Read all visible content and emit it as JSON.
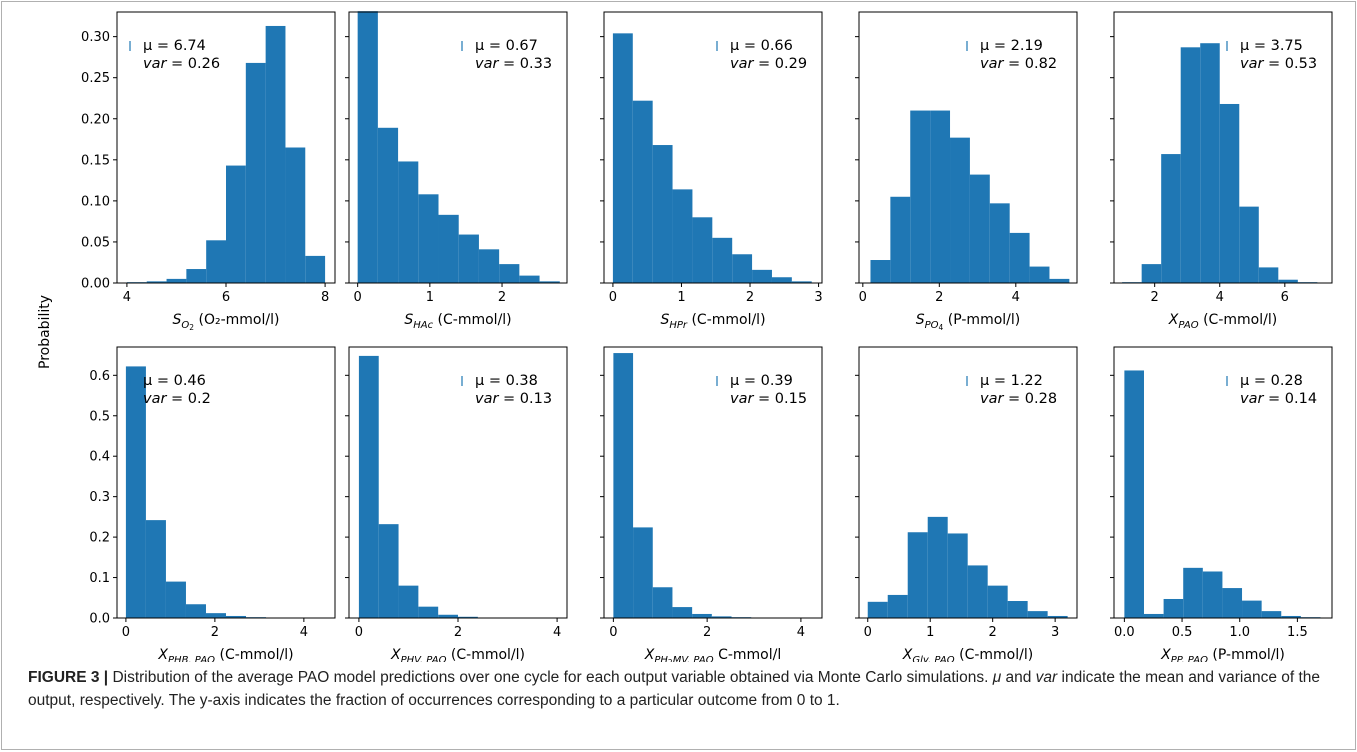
{
  "figure": {
    "ylabel": "Probability",
    "caption_label": "FIGURE 3 |",
    "caption_text": " Distribution of the average PAO model predictions over one cycle for each output variable obtained via Monte Carlo simulations. μ and var indicate the mean and variance of the output, respectively. The y-axis indicates the fraction of occurrences corresponding to a particular outcome from 0 to 1.",
    "bar_color": "#1f77b4"
  },
  "chart_data": [
    {
      "type": "bar",
      "sym": "S",
      "sub": "O",
      "sub2": "2",
      "unit": " (O₂-mmol/l)",
      "mu": "μ = 6.74",
      "var_value": "= 0.26",
      "ylim": [
        0,
        0.33
      ],
      "yticks": [
        "0.00",
        "0.05",
        "0.10",
        "0.15",
        "0.20",
        "0.25",
        "0.30"
      ],
      "xticks": [
        "4",
        "6",
        "8"
      ],
      "xtick_values": [
        4,
        6,
        8
      ],
      "xlim": [
        3.8,
        8.2
      ],
      "bin_edges": [
        4,
        4.4,
        4.8,
        5.2,
        5.6,
        6.0,
        6.4,
        6.8,
        7.2,
        7.6,
        8.0
      ],
      "values": [
        0.001,
        0.002,
        0.005,
        0.017,
        0.052,
        0.143,
        0.268,
        0.313,
        0.165,
        0.033
      ]
    },
    {
      "type": "bar",
      "sym": "S",
      "sub": "HAc",
      "sub2": "",
      "unit": " (C-mmol/l)",
      "mu": "μ = 0.67",
      "var_value": "= 0.33",
      "ylim": [
        0,
        0.33
      ],
      "yticks": [],
      "xticks": [
        "0",
        "1",
        "2"
      ],
      "xtick_values": [
        0,
        1,
        2
      ],
      "xlim": [
        -0.12,
        2.9
      ],
      "bin_edges": [
        0,
        0.28,
        0.56,
        0.84,
        1.12,
        1.4,
        1.68,
        1.96,
        2.24,
        2.52,
        2.8
      ],
      "values": [
        0.331,
        0.189,
        0.148,
        0.108,
        0.083,
        0.059,
        0.041,
        0.023,
        0.009,
        0.002
      ]
    },
    {
      "type": "bar",
      "sym": "S",
      "sub": "HPr",
      "sub2": "",
      "unit": " (C-mmol/l)",
      "mu": "μ = 0.66",
      "var_value": "= 0.29",
      "ylim": [
        0,
        0.33
      ],
      "yticks": [],
      "xticks": [
        "0",
        "1",
        "2",
        "3"
      ],
      "xtick_values": [
        0,
        1,
        2,
        3
      ],
      "xlim": [
        -0.13,
        3.05
      ],
      "bin_edges": [
        0,
        0.29,
        0.58,
        0.87,
        1.16,
        1.45,
        1.74,
        2.03,
        2.32,
        2.61,
        2.9
      ],
      "values": [
        0.304,
        0.222,
        0.168,
        0.114,
        0.08,
        0.055,
        0.035,
        0.016,
        0.007,
        0.002
      ]
    },
    {
      "type": "bar",
      "sym": "S",
      "sub": "PO",
      "sub2": "4",
      "unit": " (P-mmol/l)",
      "mu": "μ = 2.19",
      "var_value": "= 0.82",
      "ylim": [
        0,
        0.33
      ],
      "yticks": [],
      "xticks": [
        "0",
        "2",
        "4"
      ],
      "xtick_values": [
        0,
        2,
        4
      ],
      "xlim": [
        -0.1,
        5.6
      ],
      "bin_edges": [
        0.2,
        0.72,
        1.24,
        1.76,
        2.28,
        2.8,
        3.32,
        3.84,
        4.36,
        4.88,
        5.4
      ],
      "values": [
        0.028,
        0.105,
        0.21,
        0.21,
        0.177,
        0.132,
        0.097,
        0.061,
        0.02,
        0.005
      ]
    },
    {
      "type": "bar",
      "sym": "X",
      "sub": "PAO",
      "sub2": "",
      "unit": " (C-mmol/l)",
      "mu": "μ = 3.75",
      "var_value": "= 0.53",
      "ylim": [
        0,
        0.33
      ],
      "yticks": [],
      "xticks": [
        "2",
        "4",
        "6"
      ],
      "xtick_values": [
        2,
        4,
        6
      ],
      "xlim": [
        0.75,
        7.45
      ],
      "bin_edges": [
        1.0,
        1.6,
        2.2,
        2.8,
        3.4,
        4.0,
        4.6,
        5.2,
        5.8,
        6.4,
        7.0
      ],
      "values": [
        0.001,
        0.023,
        0.157,
        0.287,
        0.292,
        0.218,
        0.093,
        0.019,
        0.004,
        0.001
      ]
    },
    {
      "type": "bar",
      "sym": "X",
      "sub": "PHB, PAO",
      "sub2": "",
      "unit": " (C-mmol/l)",
      "mu": "μ = 0.46",
      "var_value": "= 0.2",
      "ylim": [
        0,
        0.67
      ],
      "yticks": [
        "0.0",
        "0.1",
        "0.2",
        "0.3",
        "0.4",
        "0.5",
        "0.6"
      ],
      "xticks": [
        "0",
        "2",
        "4"
      ],
      "xtick_values": [
        0,
        2,
        4
      ],
      "xlim": [
        -0.2,
        4.7
      ],
      "bin_edges": [
        0,
        0.45,
        0.9,
        1.35,
        1.8,
        2.25,
        2.7,
        3.15,
        3.6,
        4.05,
        4.5
      ],
      "values": [
        0.622,
        0.242,
        0.09,
        0.034,
        0.012,
        0.005,
        0.002,
        0.001,
        0.001,
        0.001
      ]
    },
    {
      "type": "bar",
      "sym": "X",
      "sub": "PHV, PAO",
      "sub2": "",
      "unit": " (C-mmol/l)",
      "mu": "μ = 0.38",
      "var_value": "= 0.13",
      "ylim": [
        0,
        0.67
      ],
      "yticks": [],
      "xticks": [
        "0",
        "2",
        "4"
      ],
      "xtick_values": [
        0,
        2,
        4
      ],
      "xlim": [
        -0.2,
        4.2
      ],
      "bin_edges": [
        0,
        0.4,
        0.8,
        1.2,
        1.6,
        2.0,
        2.4,
        2.8,
        3.2,
        3.6,
        4.0
      ],
      "values": [
        0.648,
        0.232,
        0.08,
        0.028,
        0.008,
        0.003,
        0.001,
        0.001,
        0.001,
        0.001
      ]
    },
    {
      "type": "bar",
      "sym": "X",
      "sub": "PH",
      "sub2": "2",
      "sub3": "MV, PAO",
      "unit": " C-mmol/l",
      "mu": "μ = 0.39",
      "var_value": "= 0.15",
      "ylim": [
        0,
        0.67
      ],
      "yticks": [],
      "xticks": [
        "0",
        "2",
        "4"
      ],
      "xtick_values": [
        0,
        2,
        4
      ],
      "xlim": [
        -0.2,
        4.45
      ],
      "bin_edges": [
        0,
        0.42,
        0.84,
        1.26,
        1.68,
        2.1,
        2.52,
        2.94,
        3.36,
        3.78,
        4.2
      ],
      "values": [
        0.655,
        0.224,
        0.076,
        0.027,
        0.01,
        0.004,
        0.002,
        0.001,
        0.001,
        0.001
      ]
    },
    {
      "type": "bar",
      "sym": "X",
      "sub": "Gly, PAO",
      "sub2": "",
      "unit": " (C-mmol/l)",
      "mu": "μ = 1.22",
      "var_value": "= 0.28",
      "ylim": [
        0,
        0.67
      ],
      "yticks": [],
      "xticks": [
        "0",
        "1",
        "2",
        "3"
      ],
      "xtick_values": [
        0,
        1,
        2,
        3
      ],
      "xlim": [
        -0.14,
        3.35
      ],
      "bin_edges": [
        0,
        0.32,
        0.64,
        0.96,
        1.28,
        1.6,
        1.92,
        2.24,
        2.56,
        2.88,
        3.2
      ],
      "values": [
        0.04,
        0.057,
        0.212,
        0.25,
        0.209,
        0.13,
        0.08,
        0.042,
        0.017,
        0.005
      ]
    },
    {
      "type": "bar",
      "sym": "X",
      "sub": "PP, PAO",
      "sub2": "",
      "unit": " (P-mmol/l)",
      "mu": "μ = 0.28",
      "var_value": "= 0.14",
      "ylim": [
        0,
        0.67
      ],
      "yticks": [],
      "xticks": [
        "0.0",
        "0.5",
        "1.0",
        "1.5"
      ],
      "xtick_values": [
        0,
        0.5,
        1.0,
        1.5
      ],
      "xlim": [
        -0.09,
        1.8
      ],
      "bin_edges": [
        0,
        0.17,
        0.34,
        0.51,
        0.68,
        0.85,
        1.02,
        1.19,
        1.36,
        1.53,
        1.7
      ],
      "values": [
        0.612,
        0.01,
        0.047,
        0.124,
        0.115,
        0.074,
        0.043,
        0.017,
        0.005,
        0.002
      ]
    }
  ]
}
